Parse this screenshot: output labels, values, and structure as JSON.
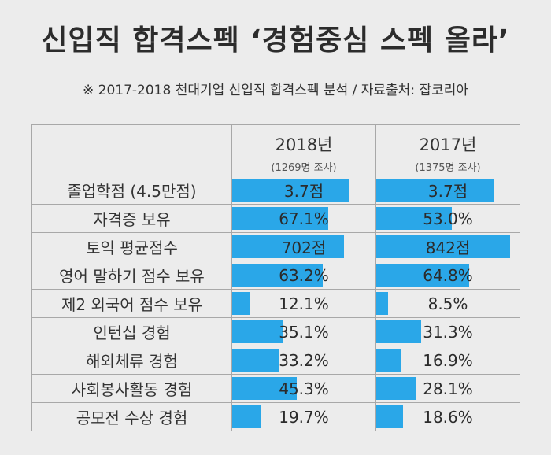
{
  "title": "신입직 합격스펙 ‘경험중심 스펙 올라’",
  "subtitle": "※ 2017-2018 천대기업 신입직 합격스펙 분석 / 자료출처: 잡코리아",
  "colors": {
    "bar": "#2aa7e8",
    "background": "#ececec",
    "border": "#a8a8a8"
  },
  "chart_data": {
    "type": "table",
    "columns": [
      {
        "year": "2018년",
        "note": "(1269명 조사)"
      },
      {
        "year": "2017년",
        "note": "(1375명 조사)"
      }
    ],
    "rows": [
      {
        "label": "졸업학점 (4.5만점)",
        "display": [
          "3.7점",
          "3.7점"
        ],
        "bar_fraction": [
          0.82,
          0.82
        ]
      },
      {
        "label": "자격증 보유",
        "display": [
          "67.1%",
          "53.0%"
        ],
        "bar_fraction": [
          0.671,
          0.53
        ]
      },
      {
        "label": "토익 평균점수",
        "display": [
          "702점",
          "842점"
        ],
        "bar_fraction": [
          0.78,
          0.935
        ]
      },
      {
        "label": "영어 말하기 점수 보유",
        "display": [
          "63.2%",
          "64.8%"
        ],
        "bar_fraction": [
          0.632,
          0.648
        ]
      },
      {
        "label": "제2 외국어 점수 보유",
        "display": [
          "12.1%",
          "8.5%"
        ],
        "bar_fraction": [
          0.121,
          0.085
        ]
      },
      {
        "label": "인턴십 경험",
        "display": [
          "35.1%",
          "31.3%"
        ],
        "bar_fraction": [
          0.351,
          0.313
        ]
      },
      {
        "label": "해외체류 경험",
        "display": [
          "33.2%",
          "16.9%"
        ],
        "bar_fraction": [
          0.332,
          0.169
        ]
      },
      {
        "label": "사회봉사활동 경험",
        "display": [
          "45.3%",
          "28.1%"
        ],
        "bar_fraction": [
          0.453,
          0.281
        ]
      },
      {
        "label": "공모전 수상 경험",
        "display": [
          "19.7%",
          "18.6%"
        ],
        "bar_fraction": [
          0.197,
          0.186
        ]
      }
    ]
  }
}
